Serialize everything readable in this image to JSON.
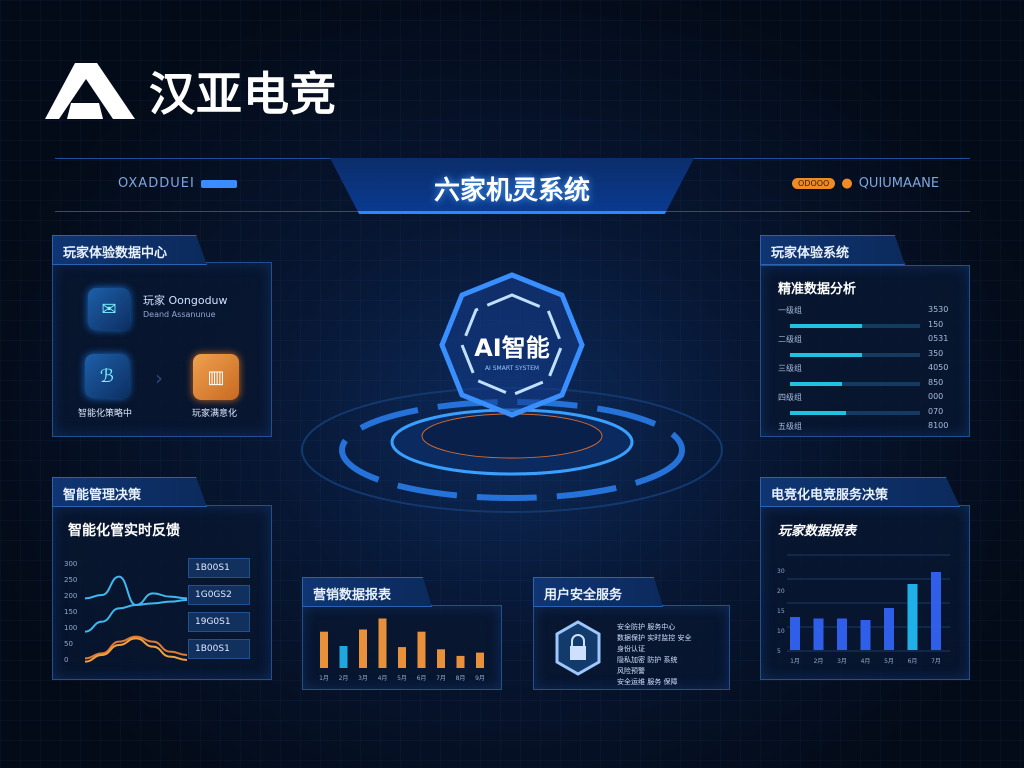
{
  "logo": {
    "text": "汉亚电竞",
    "icon": "a-logo-icon"
  },
  "header": {
    "title": "六家机灵系统",
    "left_code": "OXADDUEI",
    "right_code": "QUIUMAANE",
    "right_pill": "ODOOO"
  },
  "hologram": {
    "label": "AI智能",
    "sublabel": "AI SMART SYSTEM"
  },
  "panel_experience": {
    "tab": "玩家体验数据中心",
    "item_title": "玩家 Oongoduw",
    "item_subtitle": "Deand Assanunue",
    "step1_label": "智能化策略中",
    "step2_label": "玩家满意化",
    "icons": [
      "folder-icon",
      "chart-icon",
      "shop-bag-icon"
    ]
  },
  "panel_system": {
    "tab": "玩家体验系统",
    "subtitle": "精准数据分析",
    "rows": [
      {
        "label": "一级组",
        "value": "3530",
        "fill": 0
      },
      {
        "label": "",
        "value": "150",
        "fill": 0.55
      },
      {
        "label": "二级组",
        "value": "0531",
        "fill": 0
      },
      {
        "label": "",
        "value": "350",
        "fill": 0.55
      },
      {
        "label": "三级组",
        "value": "4050",
        "fill": 0
      },
      {
        "label": "",
        "value": "850",
        "fill": 0.4
      },
      {
        "label": "四级组",
        "value": "000",
        "fill": 0
      },
      {
        "label": "",
        "value": "070",
        "fill": 0.43
      },
      {
        "label": "五级组",
        "value": "8100",
        "fill": 0
      }
    ]
  },
  "panel_feedback": {
    "tab": "智能管理决策",
    "subtitle": "智能化管实时反馈",
    "y_ticks": [
      "300",
      "250",
      "200",
      "150",
      "100",
      "50",
      "0"
    ],
    "values": [
      "1B00S1",
      "1G0GS2",
      "19G0S1",
      "1B00S1"
    ]
  },
  "panel_ops": {
    "tab": "营销数据报表",
    "icon": "bar-chart"
  },
  "panel_service": {
    "tab": "用户安全服务",
    "icon": "shield-lock-icon",
    "lines": [
      "安全防护 服务中心",
      "数据保护 实时监控 安全",
      "身份认证",
      "隐私加密 防护 系统",
      "风险预警",
      "安全运维 服务 保障"
    ]
  },
  "panel_ranking": {
    "tab": "电竞化电竞服务决策",
    "subtitle": "玩家数据报表",
    "y_ticks": [
      "30",
      "20",
      "15",
      "10",
      "5"
    ]
  },
  "colors": {
    "accent": "#2f86ff",
    "cyan": "#1fc3e0",
    "orange": "#e8903a",
    "bar_blue": "#2f5fe8"
  },
  "chart_data": [
    {
      "type": "bar",
      "title": "营销数据报表",
      "categories": [
        "1月",
        "2月",
        "3月",
        "4月",
        "5月",
        "6月",
        "7月",
        "8月",
        "9月"
      ],
      "values": [
        33,
        20,
        35,
        45,
        19,
        33,
        17,
        11,
        14
      ],
      "highlight_index": 1,
      "ylim": [
        0,
        50
      ]
    },
    {
      "type": "bar",
      "title": "玩家数据报表",
      "categories": [
        "1月",
        "2月",
        "3月",
        "4月",
        "5月",
        "6月",
        "7月"
      ],
      "values": [
        11,
        10.5,
        10.5,
        10,
        14,
        22,
        26
      ],
      "ylim": [
        0,
        30
      ]
    },
    {
      "type": "line",
      "title": "智能化管实时反馈",
      "x": [
        0,
        1,
        2,
        3,
        4,
        5,
        6
      ],
      "series": [
        {
          "values": [
            200,
            210,
            265,
            180,
            215,
            205,
            200
          ],
          "color": "#3fb8f0"
        },
        {
          "values": [
            100,
            130,
            170,
            180,
            185,
            190,
            195
          ],
          "color": "#3fb8f0"
        },
        {
          "values": [
            20,
            35,
            70,
            85,
            70,
            40,
            30
          ],
          "color": "#e07a30"
        },
        {
          "values": [
            10,
            30,
            60,
            80,
            55,
            25,
            15
          ],
          "color": "#f0a040"
        }
      ],
      "ylim": [
        0,
        300
      ]
    }
  ]
}
